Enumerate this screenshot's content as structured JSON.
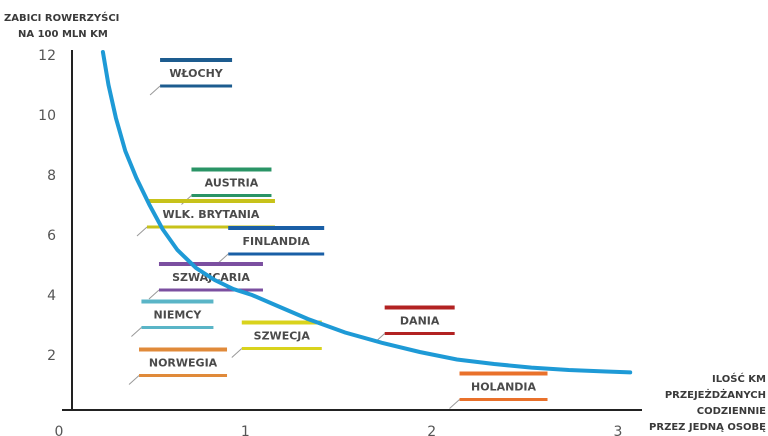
{
  "chart_data": {
    "type": "line",
    "ylabel_lines": [
      "ZABICI ROWERZYŚCI",
      "NA 100 MLN KM"
    ],
    "xlabel_lines": [
      "ILOŚĆ KM",
      "PRZEJEŻDŻANYCH",
      "CODZIENNIE",
      "PRZEZ JEDNĄ OSOBĘ"
    ],
    "xlim": [
      0,
      3.2
    ],
    "ylim": [
      0,
      12.5
    ],
    "x_ticks": [
      "0",
      "1",
      "2",
      "3"
    ],
    "x_tick_values": [
      0,
      1,
      2,
      3
    ],
    "y_ticks": [
      "2",
      "4",
      "6",
      "8",
      "10",
      "12"
    ],
    "y_tick_values": [
      2,
      4,
      6,
      8,
      10,
      12
    ],
    "grid": false,
    "curve_color": "#1e9ad6",
    "curve": {
      "x": [
        0.3,
        0.33,
        0.37,
        0.42,
        0.48,
        0.55,
        0.62,
        0.7,
        0.8,
        0.9,
        1.0,
        1.1,
        1.25,
        1.4,
        1.6,
        1.8,
        2.0,
        2.2,
        2.4,
        2.6,
        2.8,
        3.0,
        3.13
      ],
      "y": [
        12.1,
        11.0,
        9.9,
        8.8,
        7.9,
        7.0,
        6.2,
        5.5,
        4.9,
        4.5,
        4.2,
        4.0,
        3.6,
        3.2,
        2.75,
        2.4,
        2.1,
        1.85,
        1.7,
        1.58,
        1.5,
        1.45,
        1.42
      ]
    },
    "countries": [
      {
        "name": "WŁOCHY",
        "color": "#1d5c8f",
        "x": 0.8,
        "y": 11.4
      },
      {
        "name": "AUSTRIA",
        "color": "#2a9466",
        "x": 0.99,
        "y": 7.75
      },
      {
        "name": "WLK. BRYTANIA",
        "color": "#c7c21a",
        "x": 0.88,
        "y": 6.7
      },
      {
        "name": "FINLANDIA",
        "color": "#1a5fa6",
        "x": 1.23,
        "y": 5.8
      },
      {
        "name": "SZWAJCARIA",
        "color": "#7b4fa0",
        "x": 0.88,
        "y": 4.6
      },
      {
        "name": "NIEMCY",
        "color": "#5ab5c7",
        "x": 0.7,
        "y": 3.35
      },
      {
        "name": "SZWECJA",
        "color": "#d9d31c",
        "x": 1.26,
        "y": 2.65
      },
      {
        "name": "NORWEGIA",
        "color": "#e08a3a",
        "x": 0.73,
        "y": 1.75
      },
      {
        "name": "DANIA",
        "color": "#b22222",
        "x": 2.0,
        "y": 3.15
      },
      {
        "name": "HOLANDIA",
        "color": "#e9712b",
        "x": 2.45,
        "y": 0.95
      }
    ]
  }
}
